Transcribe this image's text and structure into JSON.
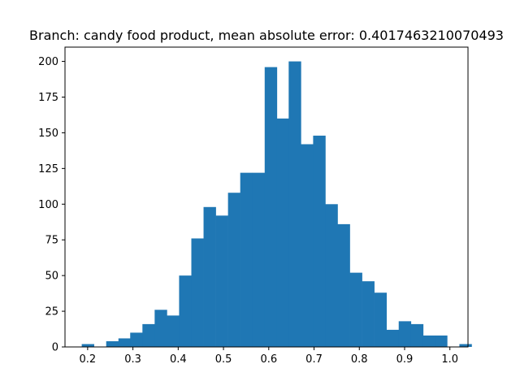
{
  "chart_data": {
    "type": "bar",
    "title": "Branch: candy food product, mean absolute error: 0.4017463210070493",
    "xlabel": "",
    "ylabel": "",
    "xlim": [
      0.15,
      1.04
    ],
    "ylim": [
      0,
      210
    ],
    "xticks": [
      0.2,
      0.3,
      0.4,
      0.5,
      0.6,
      0.7,
      0.8,
      0.9,
      1.0
    ],
    "xtick_labels": [
      "0.2",
      "0.3",
      "0.4",
      "0.5",
      "0.6",
      "0.7",
      "0.8",
      "0.9",
      "1.0"
    ],
    "yticks": [
      0,
      25,
      50,
      75,
      100,
      125,
      150,
      175,
      200
    ],
    "ytick_labels": [
      "0",
      "25",
      "50",
      "75",
      "100",
      "125",
      "150",
      "175",
      "200"
    ],
    "bar_color": "#1f77b4",
    "grid": false,
    "bins": [
      {
        "x0": 0.187,
        "x1": 0.214,
        "count": 2
      },
      {
        "x0": 0.214,
        "x1": 0.241,
        "count": 0
      },
      {
        "x0": 0.241,
        "x1": 0.268,
        "count": 4
      },
      {
        "x0": 0.268,
        "x1": 0.294,
        "count": 6
      },
      {
        "x0": 0.294,
        "x1": 0.321,
        "count": 10
      },
      {
        "x0": 0.321,
        "x1": 0.348,
        "count": 16
      },
      {
        "x0": 0.348,
        "x1": 0.375,
        "count": 26
      },
      {
        "x0": 0.375,
        "x1": 0.402,
        "count": 22
      },
      {
        "x0": 0.402,
        "x1": 0.429,
        "count": 50
      },
      {
        "x0": 0.429,
        "x1": 0.456,
        "count": 76
      },
      {
        "x0": 0.456,
        "x1": 0.483,
        "count": 98
      },
      {
        "x0": 0.483,
        "x1": 0.51,
        "count": 92
      },
      {
        "x0": 0.51,
        "x1": 0.537,
        "count": 108
      },
      {
        "x0": 0.537,
        "x1": 0.564,
        "count": 122
      },
      {
        "x0": 0.564,
        "x1": 0.591,
        "count": 122
      },
      {
        "x0": 0.591,
        "x1": 0.618,
        "count": 196
      },
      {
        "x0": 0.618,
        "x1": 0.644,
        "count": 160
      },
      {
        "x0": 0.644,
        "x1": 0.671,
        "count": 200
      },
      {
        "x0": 0.671,
        "x1": 0.698,
        "count": 142
      },
      {
        "x0": 0.698,
        "x1": 0.725,
        "count": 148
      },
      {
        "x0": 0.725,
        "x1": 0.752,
        "count": 100
      },
      {
        "x0": 0.752,
        "x1": 0.779,
        "count": 86
      },
      {
        "x0": 0.779,
        "x1": 0.806,
        "count": 52
      },
      {
        "x0": 0.806,
        "x1": 0.833,
        "count": 46
      },
      {
        "x0": 0.833,
        "x1": 0.86,
        "count": 38
      },
      {
        "x0": 0.86,
        "x1": 0.887,
        "count": 12
      },
      {
        "x0": 0.887,
        "x1": 0.914,
        "count": 18
      },
      {
        "x0": 0.914,
        "x1": 0.941,
        "count": 16
      },
      {
        "x0": 0.941,
        "x1": 0.968,
        "count": 8
      },
      {
        "x0": 0.968,
        "x1": 0.994,
        "count": 8
      },
      {
        "x0": 0.994,
        "x1": 1.021,
        "count": 0
      },
      {
        "x0": 1.021,
        "x1": 1.048,
        "count": 2
      }
    ]
  }
}
